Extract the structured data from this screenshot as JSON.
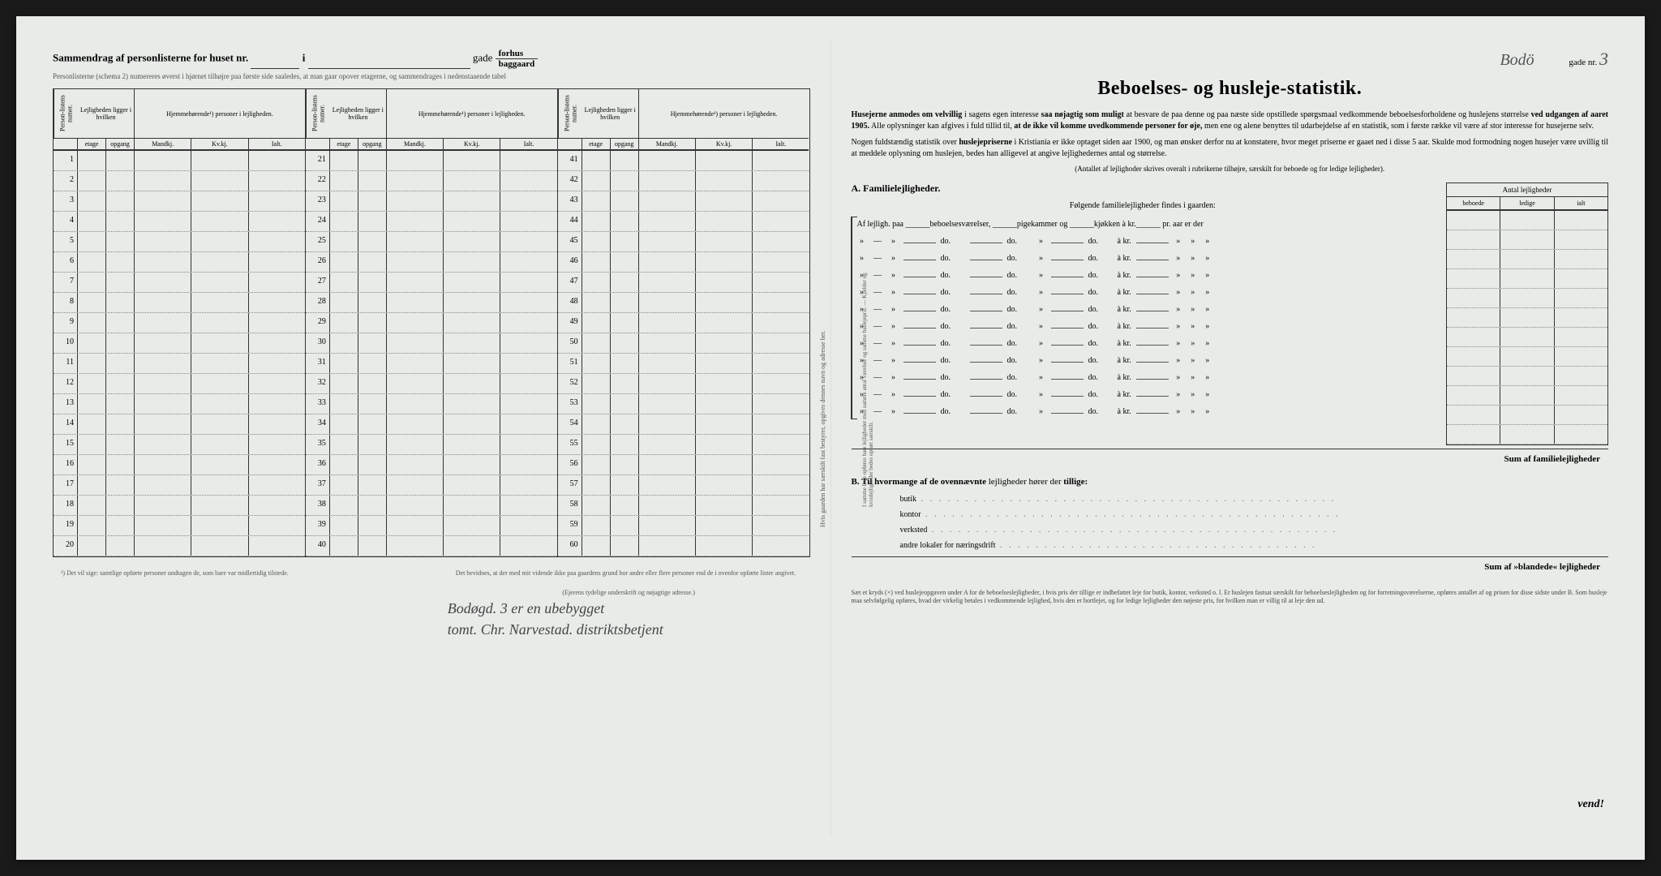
{
  "left": {
    "title_prefix": "Sammendrag af personlisterne for huset nr.",
    "title_i": "i",
    "title_gade": "gade",
    "forhus": "forhus",
    "baggaard": "baggaard",
    "subheader": "Personlisterne (schema 2) numereres øverst i hjørnet tilhøjre paa første side saaledes, at man gaar opover etagerne, og sammendrages i nedenstaaende tabel",
    "th_person": "Person-listens numer.",
    "th_lejl": "Lejligheden ligger i hvilken",
    "th_hjem": "Hjemmehørende¹) personer i lejligheden.",
    "ths_etage": "etage",
    "ths_opgang": "opgang",
    "ths_mand": "Mandkj.",
    "ths_kv": "Kv.kj.",
    "ths_ialt": "Ialt.",
    "block1_rows": [
      1,
      2,
      3,
      4,
      5,
      6,
      7,
      8,
      9,
      10,
      11,
      12,
      13,
      14,
      15,
      16,
      17,
      18,
      19,
      20
    ],
    "block2_rows": [
      21,
      22,
      23,
      24,
      25,
      26,
      27,
      28,
      29,
      30,
      31,
      32,
      33,
      34,
      35,
      36,
      37,
      38,
      39,
      40
    ],
    "block3_rows": [
      41,
      42,
      43,
      44,
      45,
      46,
      47,
      48,
      49,
      50,
      51,
      52,
      53,
      54,
      55,
      56,
      57,
      58,
      59,
      60
    ],
    "footnote1": "¹) Det vil sige: samtlige opførte personer undtagen de, som bare var midlertidig tilstede.",
    "footnote2": "Det bevidnes, at der med mit vidende ikke paa gaardens grund bor andre eller flere personer end de i ovenfor opførte lister angivet.",
    "footnote2_sub": "(Ejerens tydelige underskrift og nøjagtige adresse.)",
    "handwriting1": "Bodøgd. 3 er en ubebygget",
    "handwriting2": "tomt. Chr. Narvestad. distriktsbetjent",
    "vertical": "Hvis gaarden har særskilt fast bestyrer, opgives dennes navn og adresse her."
  },
  "right": {
    "hand_bodo": "Bodö",
    "gade_nr_label": "gade nr.",
    "hand_3": "3",
    "title": "Beboelses- og husleje-statistik.",
    "intro1_a": "Husejerne anmodes om velvillig",
    "intro1_b": "i sagens egen interesse",
    "intro1_c": "saa nøjagtig som muligt",
    "intro1_d": "at besvare de paa denne og paa næste side opstillede spørgsmaal vedkommende beboelsesforholdene og huslejens størrelse",
    "intro1_e": "ved udgangen af aaret 1905.",
    "intro1_f": "Alle oplysninger kan afgives i fuld tillid til,",
    "intro1_g": "at de ikke vil komme uvedkommende personer for øje,",
    "intro1_h": "men ene og alene benyttes til udarbejdelse af en statistik, som i første række vil være af stor interesse for husejerne selv.",
    "intro2_a": "Nogen fuldstændig statistik over",
    "intro2_b": "huslejepriserne",
    "intro2_c": "i Kristiania er ikke optaget siden aar 1900, og man ønsker derfor nu at konstatere, hvor meget priserne er gaaet ned i disse 5 aar. Skulde mod formodning nogen husejer være uvillig til at meddele oplysning om huslejen, bedes han alligevel at angive lejlighedernes antal og størrelse.",
    "intro_center": "(Antallet af lejlighoder skrives overalt i rubrikerne tilhøjre, særskilt for beboede og for ledige lejligheder).",
    "section_A": "A.   Familielejligheder.",
    "folgende": "Følgende familielejligheder findes i gaarden:",
    "fam_first": "Af lejligh. paa ______beboelsesværelser, ______pigekammer og ______kjøkken à kr.______ pr. aar er der",
    "do": "do.",
    "akr": "à kr.",
    "antal_head": "Antal lejligheder",
    "antal_beboede": "beboede",
    "antal_ledige": "ledige",
    "antal_ialt": "ialt",
    "sum_A": "Sum af familielejligheder",
    "section_B_label": "B.   Til hvormange",
    "section_B_bold": "af de ovennævnte",
    "section_B_rest": "lejligheder hører der",
    "section_B_tillige": "tillige:",
    "b_butik": "butik",
    "b_kontor": "kontor",
    "b_verksted": "verksted",
    "b_andre": "andre lokaler for næringsdrift",
    "sum_B": "Sum af »blandede« lejligheder",
    "footer": "Sæt et kryds (×) ved huslejeopgaven under A for de beboelseslejligheder, i hvis pris der tillige er indbefattet leje for butik, kontor, verksted o. l. Er huslejen fastsat særskilt for beboelseslejligheden og for forretningsværelserne, opføres antallet af og prisen for disse sidste under B. Som husleje maa selvfølgelig opføres, hvad der virkelig betales i vedkommende lejlighed, hvis den er bortlejet, og for ledige lejligheder den nøjeste pris, for hvilken man er villig til at leje den ud.",
    "vend": "vend!",
    "vertical_left": "I samme linje opføres bare lejligheder med samme antal værelser og samme huslejepris. — Kjælder og kvistlejligheder bedes opført særskilt."
  },
  "colors": {
    "paper": "#e8ebe8",
    "ink": "#333333",
    "faint": "#555555"
  }
}
